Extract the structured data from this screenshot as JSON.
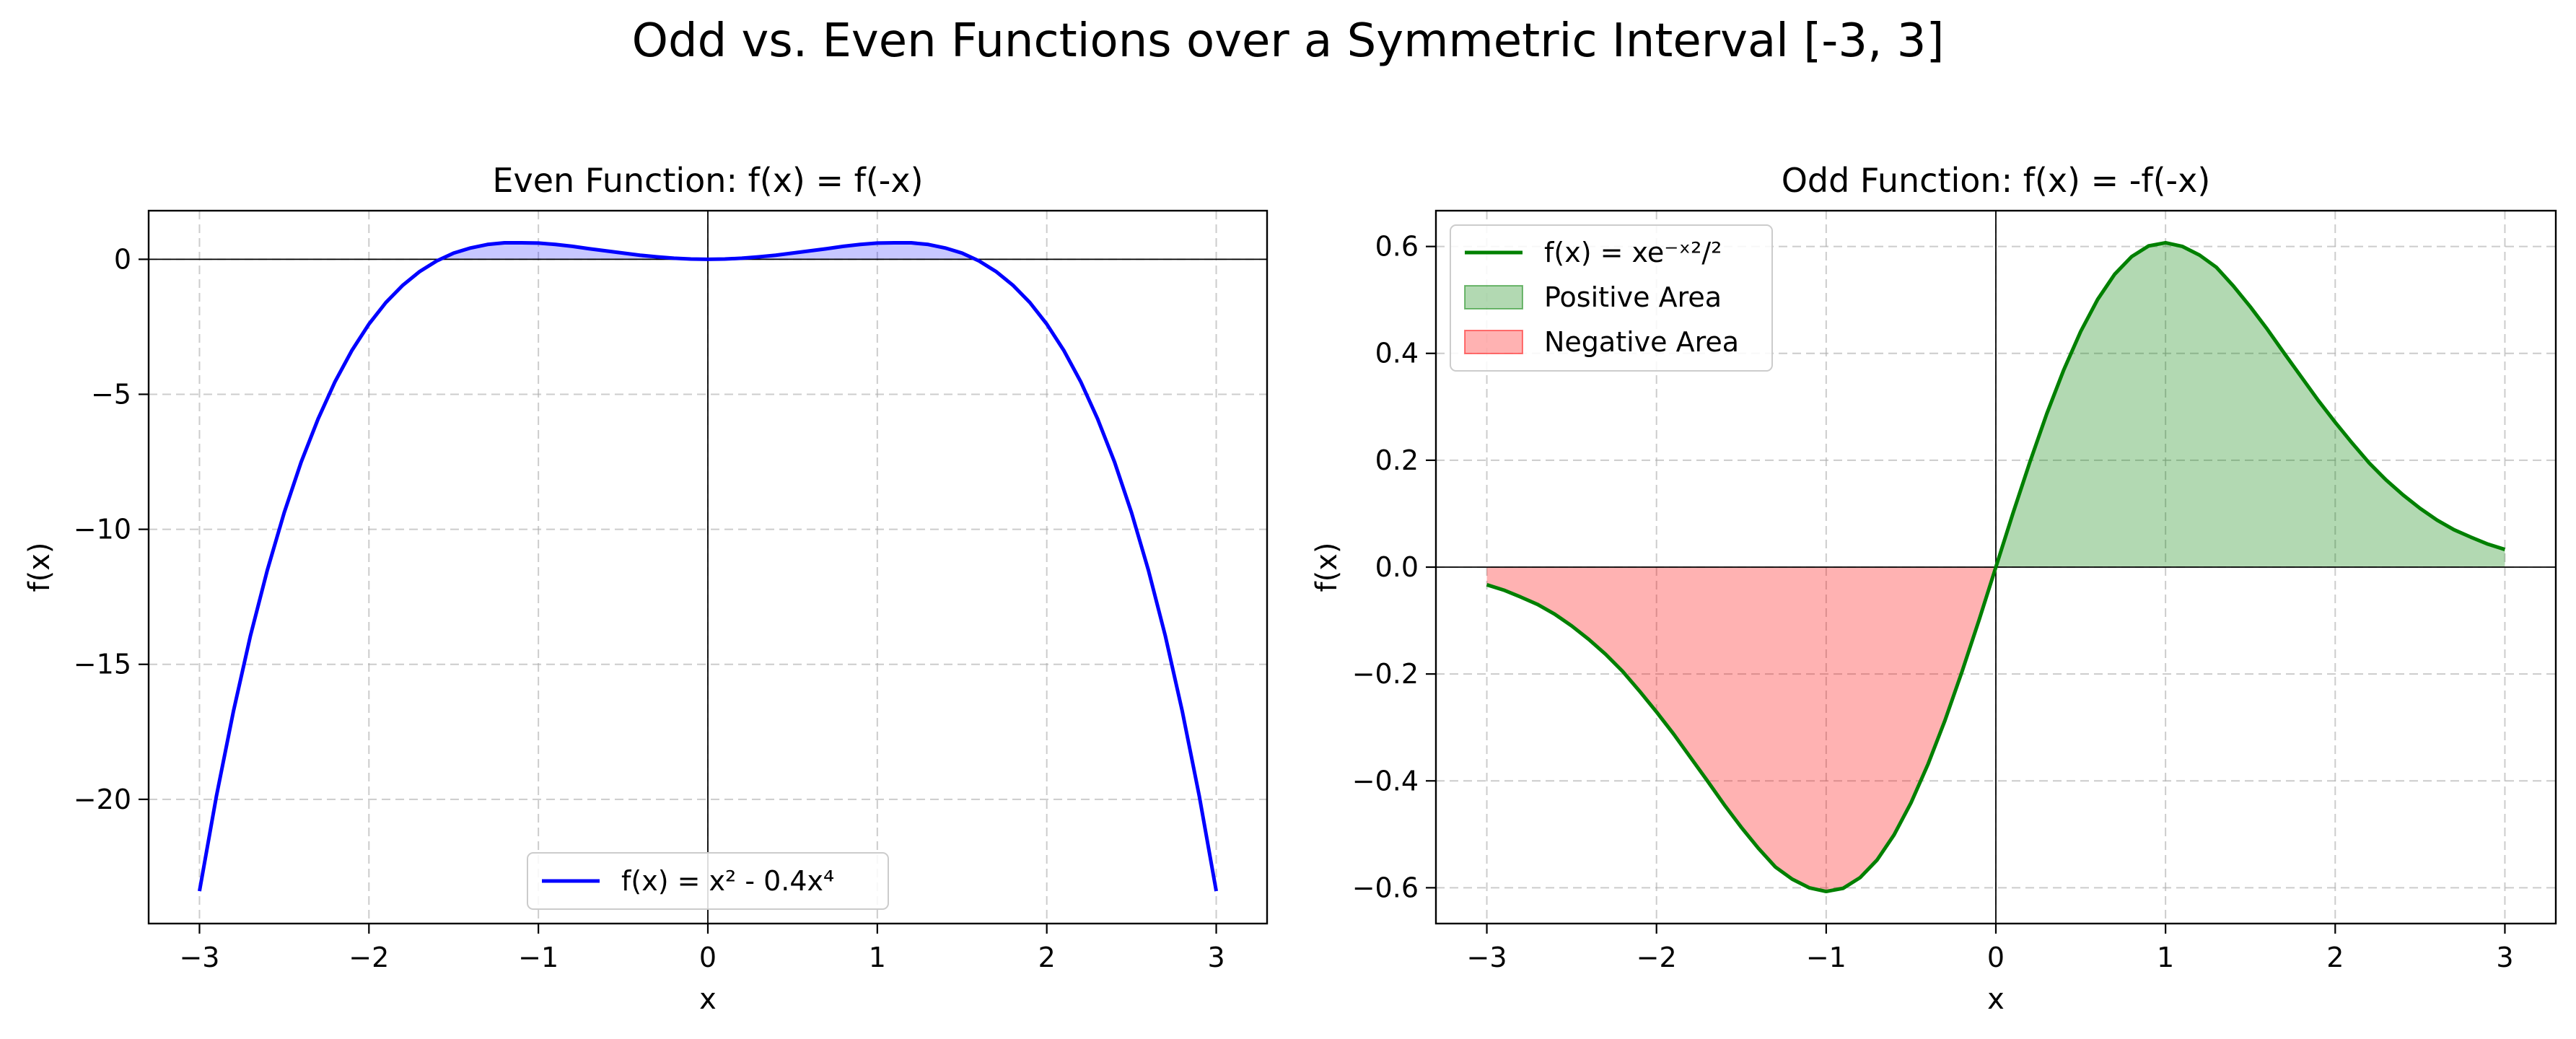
{
  "figure": {
    "title": "Odd vs. Even Functions over a Symmetric Interval [-3, 3]"
  },
  "chart_data": [
    {
      "type": "line",
      "title": "Even Function: f(x) = f(-x)",
      "xlabel": "x",
      "ylabel": "f(x)",
      "xlim": [
        -3.3,
        3.3
      ],
      "ylim": [
        -24.6,
        1.8
      ],
      "xticks": [
        -3,
        -2,
        -1,
        0,
        1,
        2,
        3
      ],
      "xtick_labels": [
        "−3",
        "−2",
        "−1",
        "0",
        "1",
        "2",
        "3"
      ],
      "yticks": [
        0,
        -5,
        -10,
        -15,
        -20
      ],
      "ytick_labels": [
        "0",
        "−5",
        "−10",
        "−15",
        "−20"
      ],
      "grid": true,
      "legend_position": "lower center",
      "series": [
        {
          "name": "f(x) = x² - 0.4x⁴",
          "color": "#0000ff",
          "x": [
            -3.0,
            -2.9,
            -2.8,
            -2.7,
            -2.6,
            -2.5,
            -2.4,
            -2.3,
            -2.2,
            -2.1,
            -2.0,
            -1.9,
            -1.8,
            -1.7,
            -1.6,
            -1.5,
            -1.4,
            -1.3,
            -1.2,
            -1.1,
            -1.0,
            -0.9,
            -0.8,
            -0.7,
            -0.6,
            -0.5,
            -0.4,
            -0.3,
            -0.2,
            -0.1,
            0.0,
            0.1,
            0.2,
            0.3,
            0.4,
            0.5,
            0.6,
            0.7,
            0.8,
            0.9,
            1.0,
            1.1,
            1.2,
            1.3,
            1.4,
            1.5,
            1.6,
            1.7,
            1.8,
            1.9,
            2.0,
            2.1,
            2.2,
            2.3,
            2.4,
            2.5,
            2.6,
            2.7,
            2.8,
            2.9,
            3.0
          ],
          "y": [
            -23.4,
            -19.88,
            -16.75,
            -13.96,
            -11.52,
            -9.38,
            -7.51,
            -5.91,
            -4.53,
            -3.37,
            -2.4,
            -1.6,
            -0.96,
            -0.45,
            -0.06,
            0.23,
            0.42,
            0.55,
            0.61,
            0.61,
            0.6,
            0.55,
            0.48,
            0.39,
            0.31,
            0.23,
            0.15,
            0.09,
            0.04,
            0.01,
            0.0,
            0.01,
            0.04,
            0.09,
            0.15,
            0.23,
            0.31,
            0.39,
            0.48,
            0.55,
            0.6,
            0.61,
            0.61,
            0.55,
            0.42,
            0.23,
            -0.06,
            -0.45,
            -0.96,
            -1.6,
            -2.4,
            -3.37,
            -4.53,
            -5.91,
            -7.51,
            -9.38,
            -11.52,
            -13.96,
            -16.75,
            -19.88,
            -23.4
          ]
        }
      ],
      "fills": [
        {
          "region": "f(x) > 0",
          "color": "#0000ff",
          "alpha": 0.22
        }
      ]
    },
    {
      "type": "area",
      "title": "Odd Function: f(x) = -f(-x)",
      "xlabel": "x",
      "ylabel": "f(x)",
      "xlim": [
        -3.3,
        3.3
      ],
      "ylim": [
        -0.667,
        0.667
      ],
      "xticks": [
        -3,
        -2,
        -1,
        0,
        1,
        2,
        3
      ],
      "xtick_labels": [
        "−3",
        "−2",
        "−1",
        "0",
        "1",
        "2",
        "3"
      ],
      "yticks": [
        0.6,
        0.4,
        0.2,
        0.0,
        -0.2,
        -0.4,
        -0.6
      ],
      "ytick_labels": [
        "0.6",
        "0.4",
        "0.2",
        "0.0",
        "−0.2",
        "−0.4",
        "−0.6"
      ],
      "grid": true,
      "legend_position": "upper left",
      "series": [
        {
          "name": "f(x) = xe⁻ˣ²/²",
          "color": "#008000",
          "x": [
            -3.0,
            -2.9,
            -2.8,
            -2.7,
            -2.6,
            -2.5,
            -2.4,
            -2.3,
            -2.2,
            -2.1,
            -2.0,
            -1.9,
            -1.8,
            -1.7,
            -1.6,
            -1.5,
            -1.4,
            -1.3,
            -1.2,
            -1.1,
            -1.0,
            -0.9,
            -0.8,
            -0.7,
            -0.6,
            -0.5,
            -0.4,
            -0.3,
            -0.2,
            -0.1,
            0.0,
            0.1,
            0.2,
            0.3,
            0.4,
            0.5,
            0.6,
            0.7,
            0.8,
            0.9,
            1.0,
            1.1,
            1.2,
            1.3,
            1.4,
            1.5,
            1.6,
            1.7,
            1.8,
            1.9,
            2.0,
            2.1,
            2.2,
            2.3,
            2.4,
            2.5,
            2.6,
            2.7,
            2.8,
            2.9,
            3.0
          ],
          "y": [
            -0.033,
            -0.043,
            -0.056,
            -0.07,
            -0.088,
            -0.11,
            -0.135,
            -0.163,
            -0.195,
            -0.232,
            -0.271,
            -0.312,
            -0.356,
            -0.4,
            -0.445,
            -0.487,
            -0.526,
            -0.561,
            -0.584,
            -0.6,
            -0.607,
            -0.601,
            -0.581,
            -0.548,
            -0.501,
            -0.441,
            -0.369,
            -0.287,
            -0.196,
            -0.1,
            0.0,
            0.1,
            0.196,
            0.287,
            0.369,
            0.441,
            0.501,
            0.548,
            0.581,
            0.601,
            0.607,
            0.6,
            0.584,
            0.561,
            0.526,
            0.487,
            0.445,
            0.4,
            0.356,
            0.312,
            0.271,
            0.232,
            0.195,
            0.163,
            0.135,
            0.11,
            0.088,
            0.07,
            0.056,
            0.043,
            0.033
          ]
        }
      ],
      "fills": [
        {
          "name": "Positive Area",
          "region": "f(x) > 0",
          "color": "#008000",
          "alpha": 0.3
        },
        {
          "name": "Negative Area",
          "region": "f(x) < 0",
          "color": "#ff0000",
          "alpha": 0.3
        }
      ]
    }
  ]
}
